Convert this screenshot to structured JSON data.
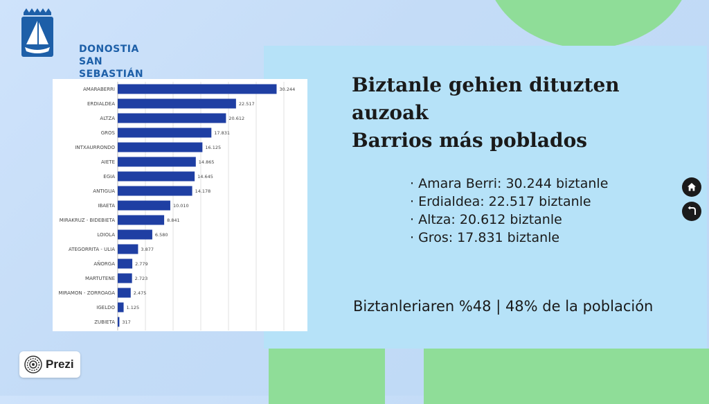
{
  "brand": {
    "line1": "DONOSTIA",
    "line2": "SAN SEBASTIÁN"
  },
  "title": {
    "line1": "Biztanle gehien dituzten auzoak",
    "line2": "Barrios más poblados"
  },
  "bullets": [
    "· Amara Berri: 30.244 biztanle",
    "· Erdialdea: 22.517 biztanle",
    "· Altza: 20.612 biztanle",
    "· Gros: 17.831 biztanle"
  ],
  "footer": "Biztanleriaren %48 | 48% de la población",
  "prezi": {
    "label": "Prezi"
  },
  "nav": {
    "home_icon": "home-icon",
    "back_icon": "back-arrow-icon"
  },
  "colors": {
    "bar": "#1f3fa3",
    "panel": "#b6e2f8",
    "accent_green": "#8fdd98",
    "brand_blue": "#1d5fa8"
  },
  "chart_data": {
    "type": "bar",
    "orientation": "horizontal",
    "categories": [
      "AMARABERRI",
      "ERDIALDEA",
      "ALTZA",
      "GROS",
      "INTXAURRONDO",
      "AIETE",
      "EGIA",
      "ANTIGUA",
      "IBAETA",
      "MIRAKRUZ - BIDEBIETA",
      "LOIOLA",
      "ATEGORRITA - ULIA",
      "AÑORGA",
      "MARTUTENE",
      "MIRAMON - ZORROAGA",
      "IGELDO",
      "ZUBIETA"
    ],
    "values": [
      30244,
      22517,
      20612,
      17831,
      16125,
      14865,
      14645,
      14178,
      10010,
      8841,
      6580,
      3877,
      2779,
      2723,
      2475,
      1125,
      317
    ],
    "value_labels": [
      "30.244",
      "22.517",
      "20.612",
      "17.831",
      "16.125",
      "14.865",
      "14.645",
      "14.178",
      "10.010",
      "8.841",
      "6.580",
      "3.877",
      "2.779",
      "2.723",
      "2.475",
      "1.125",
      "317"
    ],
    "xlim": [
      0,
      34000
    ],
    "grid": true,
    "legend": "none"
  }
}
